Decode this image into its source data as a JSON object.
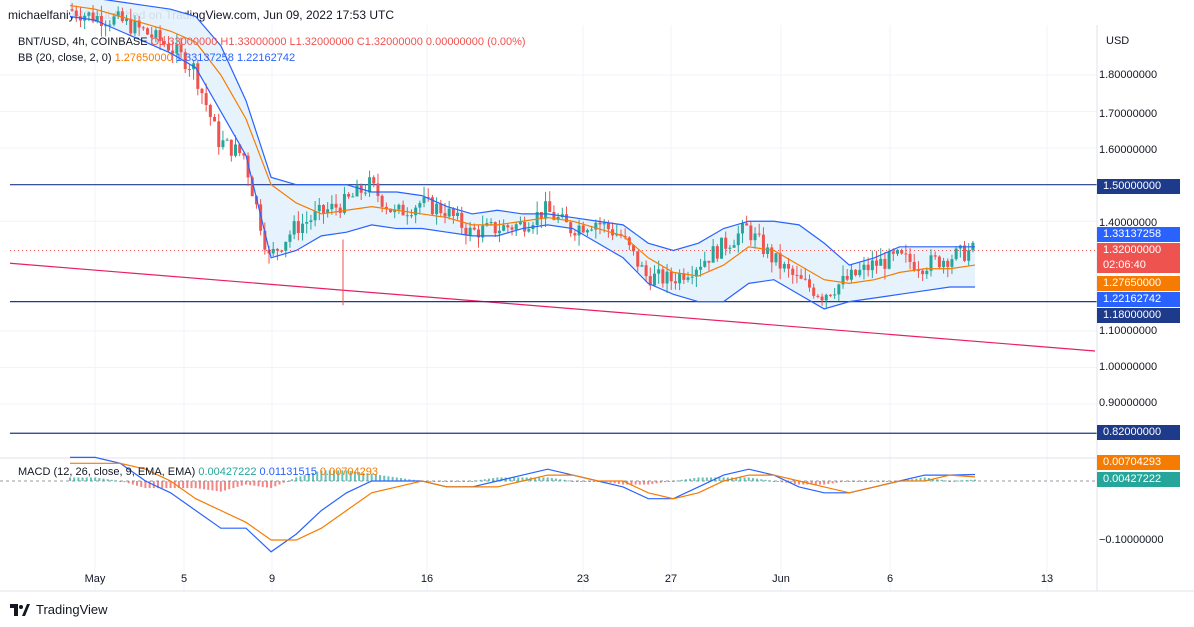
{
  "header": {
    "published": "michaelfaniyi42 published on TradingView.com, Jun 09, 2022 17:53 UTC"
  },
  "legend": {
    "symbol": "BNT/USD, 4h, COINBASE",
    "ohlc": "O1.33000000 H1.33000000 L1.32000000 C1.32000000 0.00000000 (0.00%)",
    "bb_label": "BB (20, close, 2, 0)",
    "bb_basis": "1.27650000",
    "bb_upper": "1.33137258",
    "bb_lower": "1.22162742",
    "macd_label": "MACD (12, 26, close, 9, EMA, EMA)",
    "macd_hist": "0.00427222",
    "macd_line": "0.01131515",
    "macd_signal": "0.00704293"
  },
  "axis": {
    "currency": "USD",
    "ticks": [
      "1.80000000",
      "1.70000000",
      "1.60000000",
      "1.40000000",
      "1.10000000",
      "1.00000000",
      "0.90000000"
    ],
    "macd_tick": "−0.10000000"
  },
  "price_tags": {
    "level_150": "1.50000000",
    "bb_upper": "1.33137258",
    "current": "1.32000000",
    "countdown": "02:06:40",
    "bb_basis": "1.27650000",
    "bb_lower": "1.22162742",
    "level_118": "1.18000000",
    "level_082": "0.82000000",
    "macd_signal": "0.00704293",
    "macd_hist": "0.00427222"
  },
  "dates": [
    "May",
    "5",
    "9",
    "16",
    "23",
    "27",
    "Jun",
    "6",
    "13"
  ],
  "footer": {
    "brand": "TradingView"
  },
  "colors": {
    "up": "#26a69a",
    "down": "#ef5350",
    "bb": "#2962ff",
    "basis": "#f57c00",
    "bb_fill": "#e3f2fd",
    "trendline": "#e91e63",
    "hline": "#1e3a8a"
  },
  "chart_data": {
    "type": "candlestick",
    "title": "BNT/USD, 4h, COINBASE",
    "ylim": [
      0.75,
      1.95
    ],
    "horizontal_levels": [
      1.5,
      1.18,
      0.82
    ],
    "trendline": {
      "from": [
        "Apr 29",
        1.285
      ],
      "to": [
        "Jun 15",
        1.045
      ]
    },
    "x": [
      "May 1",
      "May 3",
      "May 5",
      "May 7",
      "May 8",
      "May 9",
      "May 10",
      "May 11",
      "May 12",
      "May 13",
      "May 14",
      "May 15",
      "May 16",
      "May 17",
      "May 18",
      "May 19",
      "May 20",
      "May 21",
      "May 22",
      "May 23",
      "May 24",
      "May 25",
      "May 26",
      "May 27",
      "May 28",
      "May 29",
      "May 30",
      "May 31",
      "Jun 1",
      "Jun 2",
      "Jun 3",
      "Jun 4",
      "Jun 5",
      "Jun 6",
      "Jun 7",
      "Jun 8",
      "Jun 9"
    ],
    "close": [
      1.98,
      1.96,
      1.95,
      1.92,
      1.88,
      1.82,
      1.62,
      1.58,
      1.3,
      1.38,
      1.42,
      1.45,
      1.5,
      1.42,
      1.45,
      1.43,
      1.37,
      1.38,
      1.39,
      1.43,
      1.38,
      1.4,
      1.36,
      1.25,
      1.24,
      1.28,
      1.33,
      1.38,
      1.3,
      1.24,
      1.2,
      1.24,
      1.28,
      1.3,
      1.28,
      1.3,
      1.32
    ],
    "bb_upper": [
      2.02,
      2.01,
      2.0,
      1.99,
      1.98,
      1.96,
      1.88,
      1.73,
      1.52,
      1.5,
      1.5,
      1.5,
      1.48,
      1.48,
      1.47,
      1.44,
      1.42,
      1.43,
      1.42,
      1.42,
      1.41,
      1.4,
      1.39,
      1.34,
      1.32,
      1.34,
      1.38,
      1.4,
      1.4,
      1.39,
      1.34,
      1.28,
      1.3,
      1.33,
      1.33,
      1.33,
      1.33
    ],
    "bb_basis": [
      1.99,
      1.98,
      1.96,
      1.94,
      1.92,
      1.89,
      1.8,
      1.68,
      1.5,
      1.45,
      1.42,
      1.43,
      1.44,
      1.43,
      1.42,
      1.41,
      1.39,
      1.39,
      1.4,
      1.41,
      1.4,
      1.38,
      1.36,
      1.3,
      1.26,
      1.25,
      1.28,
      1.33,
      1.32,
      1.28,
      1.24,
      1.23,
      1.24,
      1.26,
      1.27,
      1.27,
      1.28
    ],
    "bb_lower": [
      1.96,
      1.95,
      1.92,
      1.89,
      1.86,
      1.82,
      1.7,
      1.58,
      1.3,
      1.32,
      1.36,
      1.37,
      1.39,
      1.38,
      1.38,
      1.37,
      1.36,
      1.36,
      1.38,
      1.39,
      1.38,
      1.34,
      1.3,
      1.23,
      1.2,
      1.18,
      1.18,
      1.23,
      1.24,
      1.2,
      1.16,
      1.18,
      1.19,
      1.2,
      1.21,
      1.22,
      1.22
    ],
    "macd": {
      "line": [
        0.04,
        0.04,
        0.03,
        0.0,
        -0.02,
        -0.05,
        -0.08,
        -0.08,
        -0.12,
        -0.09,
        -0.05,
        -0.02,
        0.0,
        0.0,
        0.0,
        -0.01,
        -0.01,
        0.0,
        0.01,
        0.02,
        0.01,
        0.0,
        -0.01,
        -0.03,
        -0.03,
        -0.01,
        0.01,
        0.02,
        0.01,
        -0.01,
        -0.02,
        -0.02,
        -0.01,
        0.0,
        0.01,
        0.01,
        0.011
      ],
      "signal": [
        0.03,
        0.03,
        0.03,
        0.02,
        0.0,
        -0.03,
        -0.05,
        -0.07,
        -0.1,
        -0.1,
        -0.08,
        -0.05,
        -0.02,
        -0.01,
        0.0,
        -0.01,
        -0.01,
        -0.01,
        0.0,
        0.01,
        0.01,
        0.0,
        0.0,
        -0.02,
        -0.03,
        -0.02,
        0.0,
        0.01,
        0.01,
        0.0,
        -0.01,
        -0.02,
        -0.01,
        0.0,
        0.0,
        0.01,
        0.007
      ],
      "ylim": [
        -0.14,
        0.06
      ]
    }
  }
}
